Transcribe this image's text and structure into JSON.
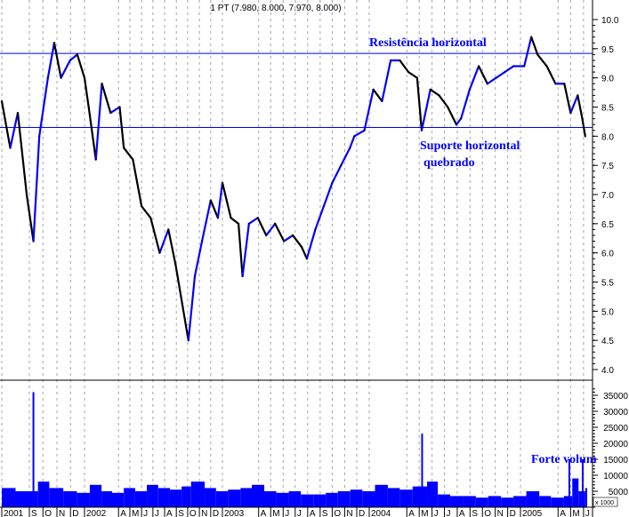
{
  "chart_data": {
    "type": "line",
    "title": "1 PT (7.980, 8.000, 7.970, 8.000)",
    "price_axis": {
      "range": [
        4.0,
        10.0
      ],
      "ticks": [
        "10.0",
        "9.5",
        "9.0",
        "8.5",
        "8.0",
        "7.5",
        "7.0",
        "6.5",
        "6.0",
        "5.5",
        "5.0",
        "4.5",
        "4.0"
      ],
      "side": "right"
    },
    "volume_axis": {
      "range": [
        0,
        35000
      ],
      "ticks": [
        "35000",
        "30000",
        "25000",
        "20000",
        "15000",
        "10000",
        "5000"
      ],
      "unit_label": "x 1000",
      "side": "right"
    },
    "x_ticks": [
      {
        "label": "2001",
        "date": "2001-07-01"
      },
      {
        "label": "S",
        "date": "2001-09-01"
      },
      {
        "label": "O",
        "date": "2001-10-01"
      },
      {
        "label": "N",
        "date": "2001-11-01"
      },
      {
        "label": "D",
        "date": "2001-12-01"
      },
      {
        "label": "2002",
        "date": "2002-01-01"
      },
      {
        "label": "A",
        "date": "2002-04-01"
      },
      {
        "label": "M",
        "date": "2002-05-01"
      },
      {
        "label": "J",
        "date": "2002-06-01"
      },
      {
        "label": "J",
        "date": "2002-07-01"
      },
      {
        "label": "A",
        "date": "2002-08-01"
      },
      {
        "label": "S",
        "date": "2002-09-01"
      },
      {
        "label": "O",
        "date": "2002-10-01"
      },
      {
        "label": "N",
        "date": "2002-11-01"
      },
      {
        "label": "D",
        "date": "2002-12-01"
      },
      {
        "label": "2003",
        "date": "2003-01-01"
      },
      {
        "label": "A",
        "date": "2003-04-01"
      },
      {
        "label": "M",
        "date": "2003-05-01"
      },
      {
        "label": "J",
        "date": "2003-06-01"
      },
      {
        "label": "J",
        "date": "2003-07-01"
      },
      {
        "label": "A",
        "date": "2003-08-01"
      },
      {
        "label": "S",
        "date": "2003-09-01"
      },
      {
        "label": "O",
        "date": "2003-10-01"
      },
      {
        "label": "N",
        "date": "2003-11-01"
      },
      {
        "label": "D",
        "date": "2003-12-01"
      },
      {
        "label": "2004",
        "date": "2004-01-01"
      },
      {
        "label": "A",
        "date": "2004-04-01"
      },
      {
        "label": "M",
        "date": "2004-05-01"
      },
      {
        "label": "J",
        "date": "2004-06-01"
      },
      {
        "label": "J",
        "date": "2004-07-01"
      },
      {
        "label": "A",
        "date": "2004-08-01"
      },
      {
        "label": "S",
        "date": "2004-09-01"
      },
      {
        "label": "O",
        "date": "2004-10-01"
      },
      {
        "label": "N",
        "date": "2004-11-01"
      },
      {
        "label": "D",
        "date": "2004-12-01"
      },
      {
        "label": "2005",
        "date": "2005-01-01"
      },
      {
        "label": "A",
        "date": "2005-04-01"
      },
      {
        "label": "M",
        "date": "2005-05-01"
      },
      {
        "label": "J",
        "date": "2005-06-01"
      }
    ],
    "price": [
      [
        "2001-07-01",
        8.6
      ],
      [
        "2001-07-20",
        7.8
      ],
      [
        "2001-08-06",
        8.4
      ],
      [
        "2001-08-26",
        7.0
      ],
      [
        "2001-09-10",
        6.2
      ],
      [
        "2001-09-23",
        8.0
      ],
      [
        "2001-10-12",
        9.0
      ],
      [
        "2001-10-26",
        9.6
      ],
      [
        "2001-11-10",
        9.0
      ],
      [
        "2001-11-30",
        9.3
      ],
      [
        "2001-12-16",
        9.4
      ],
      [
        "2002-01-01",
        9.0
      ],
      [
        "2002-01-12",
        8.5
      ],
      [
        "2002-01-31",
        7.6
      ],
      [
        "2002-02-16",
        8.9
      ],
      [
        "2002-03-11",
        8.4
      ],
      [
        "2002-04-04",
        8.5
      ],
      [
        "2002-04-15",
        7.8
      ],
      [
        "2002-05-09",
        7.6
      ],
      [
        "2002-06-01",
        6.8
      ],
      [
        "2002-06-25",
        6.6
      ],
      [
        "2002-07-19",
        6.0
      ],
      [
        "2002-08-11",
        6.4
      ],
      [
        "2002-08-30",
        5.8
      ],
      [
        "2002-10-03",
        4.5
      ],
      [
        "2002-10-20",
        5.6
      ],
      [
        "2002-11-08",
        6.2
      ],
      [
        "2002-12-01",
        6.9
      ],
      [
        "2002-12-20",
        6.6
      ],
      [
        "2003-01-01",
        7.2
      ],
      [
        "2003-01-22",
        6.6
      ],
      [
        "2003-02-10",
        6.5
      ],
      [
        "2003-02-20",
        5.6
      ],
      [
        "2003-03-08",
        6.5
      ],
      [
        "2003-03-30",
        6.6
      ],
      [
        "2003-04-20",
        6.3
      ],
      [
        "2003-05-12",
        6.5
      ],
      [
        "2003-06-03",
        6.2
      ],
      [
        "2003-06-25",
        6.3
      ],
      [
        "2003-07-17",
        6.1
      ],
      [
        "2003-07-30",
        5.9
      ],
      [
        "2003-08-20",
        6.4
      ],
      [
        "2003-09-10",
        6.8
      ],
      [
        "2003-10-01",
        7.2
      ],
      [
        "2003-10-23",
        7.5
      ],
      [
        "2003-11-14",
        7.8
      ],
      [
        "2003-11-25",
        8.0
      ],
      [
        "2003-12-20",
        8.1
      ],
      [
        "2004-01-11",
        8.8
      ],
      [
        "2004-02-01",
        8.6
      ],
      [
        "2004-02-22",
        9.3
      ],
      [
        "2004-03-15",
        9.3
      ],
      [
        "2004-04-05",
        9.1
      ],
      [
        "2004-04-26",
        9.0
      ],
      [
        "2004-05-07",
        8.1
      ],
      [
        "2004-05-28",
        8.8
      ],
      [
        "2004-06-18",
        8.7
      ],
      [
        "2004-07-09",
        8.5
      ],
      [
        "2004-07-30",
        8.2
      ],
      [
        "2004-08-10",
        8.3
      ],
      [
        "2004-08-31",
        8.8
      ],
      [
        "2004-09-22",
        9.2
      ],
      [
        "2004-10-13",
        8.9
      ],
      [
        "2004-11-03",
        9.0
      ],
      [
        "2004-11-24",
        9.1
      ],
      [
        "2004-12-15",
        9.2
      ],
      [
        "2005-01-10",
        9.2
      ],
      [
        "2005-01-27",
        9.7
      ],
      [
        "2005-02-11",
        9.4
      ],
      [
        "2005-03-05",
        9.2
      ],
      [
        "2005-03-26",
        8.9
      ],
      [
        "2005-04-16",
        8.9
      ],
      [
        "2005-05-01",
        8.4
      ],
      [
        "2005-05-18",
        8.7
      ],
      [
        "2005-05-29",
        8.3
      ],
      [
        "2005-06-05",
        8.0
      ]
    ],
    "volume": [
      [
        "2001-07-01",
        6000
      ],
      [
        "2001-08-01",
        5000
      ],
      [
        "2001-09-10",
        36000
      ],
      [
        "2001-09-20",
        8000
      ],
      [
        "2001-10-15",
        6000
      ],
      [
        "2001-11-15",
        5000
      ],
      [
        "2001-12-15",
        4500
      ],
      [
        "2002-01-15",
        7000
      ],
      [
        "2002-02-15",
        5000
      ],
      [
        "2002-03-15",
        4500
      ],
      [
        "2002-04-15",
        6000
      ],
      [
        "2002-05-15",
        5000
      ],
      [
        "2002-06-15",
        7000
      ],
      [
        "2002-07-15",
        6000
      ],
      [
        "2002-08-15",
        5500
      ],
      [
        "2002-09-15",
        6500
      ],
      [
        "2002-10-10",
        8000
      ],
      [
        "2002-11-15",
        6000
      ],
      [
        "2002-12-15",
        5000
      ],
      [
        "2003-01-15",
        5500
      ],
      [
        "2003-02-15",
        6000
      ],
      [
        "2003-03-15",
        7000
      ],
      [
        "2003-04-15",
        5000
      ],
      [
        "2003-05-15",
        4500
      ],
      [
        "2003-06-15",
        5000
      ],
      [
        "2003-07-15",
        4000
      ],
      [
        "2003-08-15",
        4000
      ],
      [
        "2003-09-15",
        4500
      ],
      [
        "2003-10-15",
        5000
      ],
      [
        "2003-11-15",
        5500
      ],
      [
        "2003-12-15",
        5000
      ],
      [
        "2004-01-15",
        7000
      ],
      [
        "2004-02-15",
        6000
      ],
      [
        "2004-03-15",
        5500
      ],
      [
        "2004-04-15",
        6500
      ],
      [
        "2004-05-08",
        23000
      ],
      [
        "2004-05-20",
        8000
      ],
      [
        "2004-06-15",
        4000
      ],
      [
        "2004-07-15",
        3500
      ],
      [
        "2004-08-15",
        3500
      ],
      [
        "2004-09-15",
        3000
      ],
      [
        "2004-10-15",
        3500
      ],
      [
        "2004-11-15",
        3000
      ],
      [
        "2004-12-15",
        3500
      ],
      [
        "2005-01-15",
        5000
      ],
      [
        "2005-02-15",
        3500
      ],
      [
        "2005-03-15",
        3000
      ],
      [
        "2005-04-15",
        3500
      ],
      [
        "2005-04-28",
        15000
      ],
      [
        "2005-05-05",
        9000
      ],
      [
        "2005-05-20",
        5000
      ],
      [
        "2005-05-30",
        15000
      ],
      [
        "2005-06-05",
        6000
      ]
    ],
    "lines": [
      {
        "label": "Resistência horizontal",
        "value": 9.42
      },
      {
        "label": "Suporte horizontal",
        "label2": "quebrado",
        "value": 8.15
      }
    ],
    "annotation_volume": "Forte volum",
    "colors": {
      "up": "#0000ff",
      "down": "#000000",
      "lines": "#0000ff",
      "volume": "#0000ff",
      "grid": "#a0a0c0"
    },
    "grid": true
  }
}
